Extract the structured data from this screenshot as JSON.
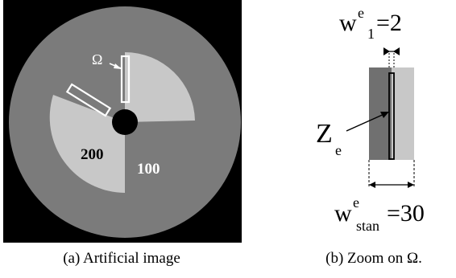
{
  "figure_a": {
    "region_label_inner": "200",
    "region_label_outer": "100",
    "omega_symbol": "Ω",
    "caption": "(a) Artificial image",
    "colors": {
      "background": "#000000",
      "outer_region": "#7b7b7b",
      "inner_region": "#c8c8c8",
      "center_hole": "#000000",
      "window_outline": "#ffffff"
    }
  },
  "figure_b": {
    "w1_base": "w",
    "w1_sup": "e",
    "w1_sub": "1",
    "w1_value": "=2",
    "ze_base": "Z",
    "ze_sub": "e",
    "wstan_base": "w",
    "wstan_sup": "e",
    "wstan_sub": "stan",
    "wstan_value": "=30",
    "caption": "(b) Zoom on Ω.",
    "colors": {
      "dark_region": "#707070",
      "light_region": "#c8c8c8"
    }
  }
}
